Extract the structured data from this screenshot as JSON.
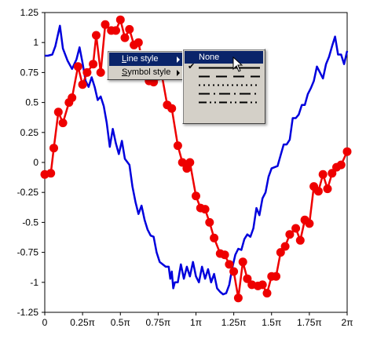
{
  "chart_data": {
    "type": "line",
    "title": "",
    "xlabel": "",
    "ylabel": "",
    "xlim": [
      0,
      2
    ],
    "ylim": [
      -1.25,
      1.25
    ],
    "x_ticks": [
      {
        "value": 0,
        "label": "0"
      },
      {
        "value": 0.25,
        "label": "0.25π"
      },
      {
        "value": 0.5,
        "label": "0.5π"
      },
      {
        "value": 0.75,
        "label": "0.75π"
      },
      {
        "value": 1,
        "label": "1π"
      },
      {
        "value": 1.25,
        "label": "1.25π"
      },
      {
        "value": 1.5,
        "label": "1.5π"
      },
      {
        "value": 1.75,
        "label": "1.75π"
      },
      {
        "value": 2,
        "label": "2π"
      }
    ],
    "y_ticks": [
      {
        "value": 1.25,
        "label": "1.25"
      },
      {
        "value": 1,
        "label": "1"
      },
      {
        "value": 0.75,
        "label": "0.75"
      },
      {
        "value": 0.5,
        "label": "0.5"
      },
      {
        "value": 0.25,
        "label": "0.25"
      },
      {
        "value": 0,
        "label": "0"
      },
      {
        "value": -0.25,
        "label": "-0.25"
      },
      {
        "value": -0.5,
        "label": "-0.5"
      },
      {
        "value": -0.75,
        "label": "-0.75"
      },
      {
        "value": -1,
        "label": "-1"
      },
      {
        "value": -1.25,
        "label": "-1.25"
      }
    ],
    "series": [
      {
        "color": "#0000dd",
        "marker": "none",
        "points": [
          [
            0,
            0.89
          ],
          [
            0.02,
            0.89
          ],
          [
            0.05,
            0.9
          ],
          [
            0.07,
            0.97
          ],
          [
            0.1,
            1.14
          ],
          [
            0.12,
            0.95
          ],
          [
            0.15,
            0.85
          ],
          [
            0.18,
            0.78
          ],
          [
            0.21,
            0.86
          ],
          [
            0.23,
            0.96
          ],
          [
            0.25,
            0.83
          ],
          [
            0.27,
            0.68
          ],
          [
            0.29,
            0.63
          ],
          [
            0.31,
            0.71
          ],
          [
            0.33,
            0.63
          ],
          [
            0.35,
            0.52
          ],
          [
            0.37,
            0.55
          ],
          [
            0.39,
            0.47
          ],
          [
            0.41,
            0.33
          ],
          [
            0.43,
            0.13
          ],
          [
            0.45,
            0.28
          ],
          [
            0.47,
            0.16
          ],
          [
            0.49,
            0.07
          ],
          [
            0.51,
            0.18
          ],
          [
            0.53,
            0.03
          ],
          [
            0.56,
            -0.02
          ],
          [
            0.58,
            -0.2
          ],
          [
            0.6,
            -0.33
          ],
          [
            0.62,
            -0.43
          ],
          [
            0.64,
            -0.36
          ],
          [
            0.66,
            -0.48
          ],
          [
            0.68,
            -0.56
          ],
          [
            0.7,
            -0.61
          ],
          [
            0.72,
            -0.62
          ],
          [
            0.74,
            -0.75
          ],
          [
            0.76,
            -0.83
          ],
          [
            0.78,
            -0.85
          ],
          [
            0.8,
            -0.87
          ],
          [
            0.82,
            -0.87
          ],
          [
            0.83,
            -0.97
          ],
          [
            0.84,
            -0.91
          ],
          [
            0.85,
            -1.05
          ],
          [
            0.86,
            -1.0
          ],
          [
            0.88,
            -1.0
          ],
          [
            0.9,
            -0.85
          ],
          [
            0.92,
            -0.97
          ],
          [
            0.94,
            -0.87
          ],
          [
            0.96,
            -0.95
          ],
          [
            0.98,
            -0.83
          ],
          [
            1.0,
            -0.95
          ],
          [
            1.02,
            -1.0
          ],
          [
            1.04,
            -0.87
          ],
          [
            1.06,
            -0.97
          ],
          [
            1.08,
            -0.89
          ],
          [
            1.1,
            -1.0
          ],
          [
            1.12,
            -0.93
          ],
          [
            1.14,
            -1.05
          ],
          [
            1.16,
            -1.08
          ],
          [
            1.18,
            -1.1
          ],
          [
            1.2,
            -1.09
          ],
          [
            1.22,
            -1.02
          ],
          [
            1.24,
            -0.88
          ],
          [
            1.26,
            -0.77
          ],
          [
            1.28,
            -0.72
          ],
          [
            1.3,
            -0.73
          ],
          [
            1.32,
            -0.64
          ],
          [
            1.34,
            -0.6
          ],
          [
            1.36,
            -0.62
          ],
          [
            1.38,
            -0.55
          ],
          [
            1.4,
            -0.38
          ],
          [
            1.42,
            -0.44
          ],
          [
            1.44,
            -0.3
          ],
          [
            1.46,
            -0.25
          ],
          [
            1.48,
            -0.12
          ],
          [
            1.5,
            -0.05
          ],
          [
            1.52,
            -0.04
          ],
          [
            1.54,
            -0.03
          ],
          [
            1.56,
            0.06
          ],
          [
            1.58,
            0.15
          ],
          [
            1.6,
            0.15
          ],
          [
            1.62,
            0.19
          ],
          [
            1.64,
            0.37
          ],
          [
            1.66,
            0.37
          ],
          [
            1.68,
            0.4
          ],
          [
            1.7,
            0.48
          ],
          [
            1.72,
            0.48
          ],
          [
            1.74,
            0.57
          ],
          [
            1.76,
            0.62
          ],
          [
            1.78,
            0.68
          ],
          [
            1.8,
            0.8
          ],
          [
            1.82,
            0.75
          ],
          [
            1.84,
            0.7
          ],
          [
            1.86,
            0.82
          ],
          [
            1.88,
            0.88
          ],
          [
            1.9,
            0.97
          ],
          [
            1.92,
            1.05
          ],
          [
            1.94,
            0.9
          ],
          [
            1.96,
            0.9
          ],
          [
            1.98,
            0.82
          ],
          [
            2.0,
            0.93
          ]
        ]
      },
      {
        "color": "#ee0000",
        "marker": "circle",
        "points": [
          [
            0.0,
            -0.1
          ],
          [
            0.04,
            -0.09
          ],
          [
            0.06,
            0.12
          ],
          [
            0.09,
            0.42
          ],
          [
            0.12,
            0.33
          ],
          [
            0.16,
            0.5
          ],
          [
            0.18,
            0.54
          ],
          [
            0.22,
            0.8
          ],
          [
            0.25,
            0.65
          ],
          [
            0.28,
            0.75
          ],
          [
            0.32,
            0.82
          ],
          [
            0.34,
            1.06
          ],
          [
            0.37,
            0.75
          ],
          [
            0.4,
            1.15
          ],
          [
            0.44,
            1.1
          ],
          [
            0.47,
            1.1
          ],
          [
            0.5,
            1.19
          ],
          [
            0.53,
            1.04
          ],
          [
            0.56,
            1.11
          ],
          [
            0.59,
            0.98
          ],
          [
            0.62,
            1.0
          ],
          [
            0.66,
            0.75
          ],
          [
            0.69,
            0.68
          ],
          [
            0.72,
            0.67
          ],
          [
            0.75,
            0.72
          ],
          [
            0.77,
            0.76
          ],
          [
            0.81,
            0.48
          ],
          [
            0.84,
            0.45
          ],
          [
            0.88,
            0.14
          ],
          [
            0.91,
            0.0
          ],
          [
            0.94,
            -0.05
          ],
          [
            0.96,
            0.0
          ],
          [
            1.0,
            -0.28
          ],
          [
            1.03,
            -0.38
          ],
          [
            1.06,
            -0.39
          ],
          [
            1.09,
            -0.5
          ],
          [
            1.12,
            -0.63
          ],
          [
            1.16,
            -0.76
          ],
          [
            1.19,
            -0.77
          ],
          [
            1.22,
            -0.85
          ],
          [
            1.25,
            -0.91
          ],
          [
            1.28,
            -1.13
          ],
          [
            1.31,
            -0.83
          ],
          [
            1.34,
            -0.97
          ],
          [
            1.37,
            -1.02
          ],
          [
            1.41,
            -1.03
          ],
          [
            1.44,
            -1.02
          ],
          [
            1.47,
            -1.09
          ],
          [
            1.5,
            -0.95
          ],
          [
            1.53,
            -0.95
          ],
          [
            1.56,
            -0.75
          ],
          [
            1.59,
            -0.7
          ],
          [
            1.62,
            -0.6
          ],
          [
            1.66,
            -0.55
          ],
          [
            1.69,
            -0.65
          ],
          [
            1.72,
            -0.48
          ],
          [
            1.75,
            -0.51
          ],
          [
            1.78,
            -0.2
          ],
          [
            1.81,
            -0.24
          ],
          [
            1.84,
            -0.1
          ],
          [
            1.87,
            -0.22
          ],
          [
            1.9,
            -0.09
          ],
          [
            1.93,
            -0.04
          ],
          [
            1.96,
            -0.02
          ],
          [
            2.0,
            0.09
          ]
        ]
      }
    ]
  },
  "context_menu": {
    "items": [
      {
        "label_accel": "L",
        "label_rest": "ine style",
        "active": true
      },
      {
        "label_accel": "S",
        "label_rest": "ymbol style",
        "active": false
      }
    ]
  },
  "line_style_submenu": {
    "none_label": "None",
    "options": [
      {
        "style": "solid",
        "checked": true,
        "icon": "solid-line-icon"
      },
      {
        "style": "dash",
        "checked": false,
        "icon": "dash-line-icon"
      },
      {
        "style": "dot",
        "checked": false,
        "icon": "dot-line-icon"
      },
      {
        "style": "dashdot",
        "checked": false,
        "icon": "dashdot-line-icon"
      },
      {
        "style": "dashdotdot",
        "checked": false,
        "icon": "dashdotdot-line-icon"
      }
    ]
  }
}
